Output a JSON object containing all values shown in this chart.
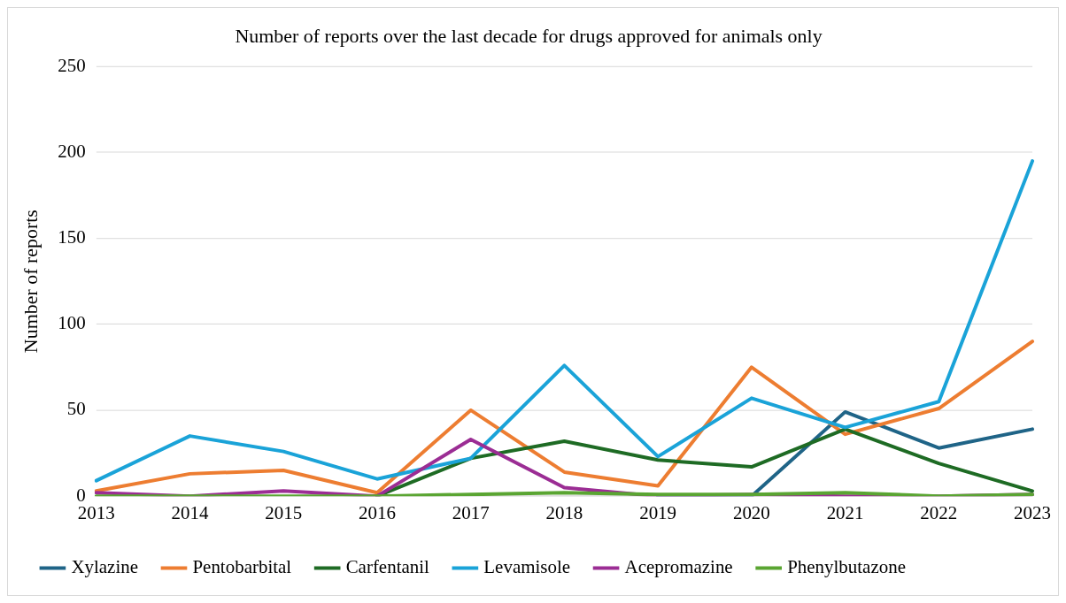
{
  "chart_data": {
    "type": "line",
    "title": "Number of reports over the last decade for drugs approved for animals only",
    "ylabel": "Number of reports",
    "categories": [
      "2013",
      "2014",
      "2015",
      "2016",
      "2017",
      "2018",
      "2019",
      "2020",
      "2021",
      "2022",
      "2023"
    ],
    "series": [
      {
        "name": "Xylazine",
        "color": "#1f6487",
        "values": [
          null,
          null,
          null,
          null,
          null,
          null,
          0,
          0,
          49,
          28,
          39
        ]
      },
      {
        "name": "Pentobarbital",
        "color": "#ed7d31",
        "values": [
          3,
          13,
          15,
          2,
          50,
          14,
          6,
          75,
          36,
          51,
          90
        ]
      },
      {
        "name": "Carfentanil",
        "color": "#1e6b24",
        "values": [
          null,
          null,
          null,
          0,
          22,
          32,
          21,
          17,
          39,
          19,
          3
        ]
      },
      {
        "name": "Levamisole",
        "color": "#1aa3d8",
        "values": [
          9,
          35,
          26,
          10,
          22,
          76,
          23,
          57,
          40,
          55,
          195
        ]
      },
      {
        "name": "Acepromazine",
        "color": "#9b2d94",
        "values": [
          2,
          0,
          3,
          0,
          33,
          5,
          0,
          1,
          0,
          0,
          1
        ]
      },
      {
        "name": "Phenylbutazone",
        "color": "#5aa532",
        "values": [
          0,
          0,
          0,
          0,
          1,
          2,
          1,
          1,
          2,
          0,
          1
        ]
      }
    ],
    "ylim": [
      0,
      250
    ],
    "yticks": [
      0,
      50,
      100,
      150,
      200,
      250
    ],
    "grid": "y",
    "legend": "bottom",
    "marker": "none",
    "line_style": "solid"
  }
}
